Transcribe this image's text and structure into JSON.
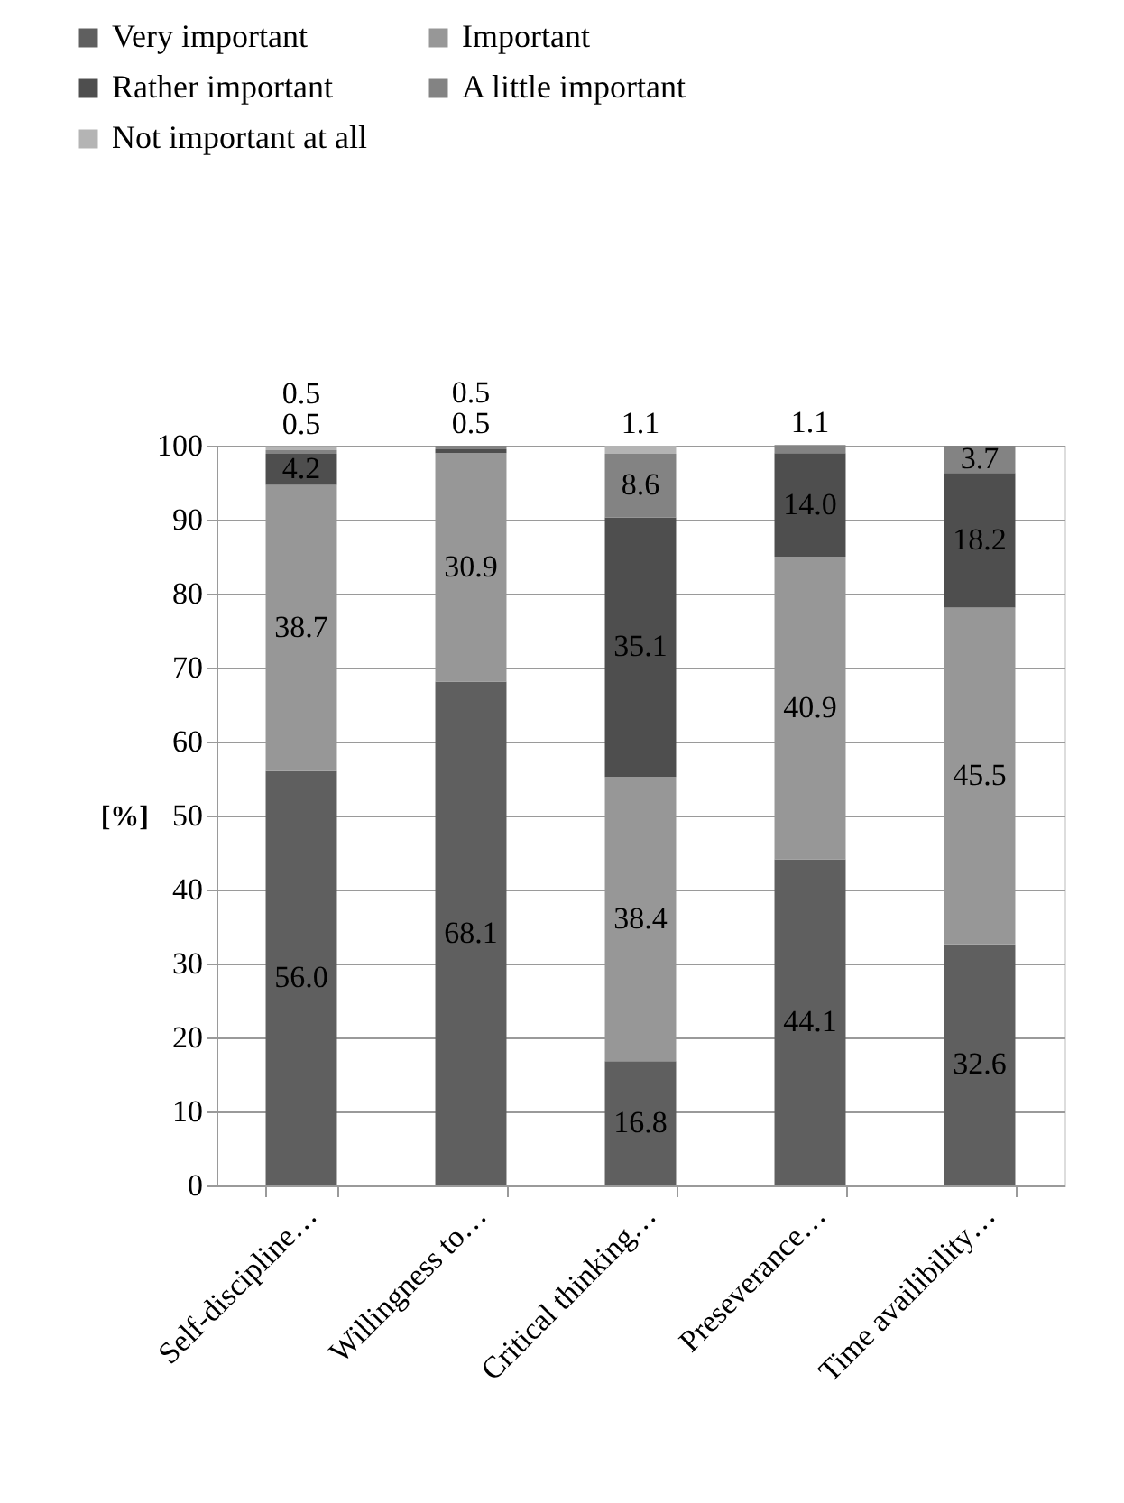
{
  "chart_data": {
    "type": "bar",
    "stacked": true,
    "ylabel": "[%]",
    "categories": [
      "Self-discipline…",
      "Willingness to…",
      "Critical thinking…",
      "Preseverance…",
      "Time availibility…"
    ],
    "series": [
      {
        "name": "Very important",
        "color": "#5f5f5f",
        "values": [
          56.0,
          68.1,
          16.8,
          44.1,
          32.6
        ],
        "value_labels": [
          "56.0",
          "68.1",
          "16.8",
          "44.1",
          "32.6"
        ]
      },
      {
        "name": "Important",
        "color": "#979797",
        "values": [
          38.7,
          30.9,
          38.4,
          40.9,
          45.5
        ],
        "value_labels": [
          "38.7",
          "30.9",
          "38.4",
          "40.9",
          "45.5"
        ]
      },
      {
        "name": "Rather important",
        "color": "#4e4e4e",
        "values": [
          4.2,
          0.5,
          35.1,
          14.0,
          18.2
        ],
        "value_labels": [
          "4.2",
          "0.5",
          "35.1",
          "14.0",
          "18.2"
        ]
      },
      {
        "name": "A little important",
        "color": "#838383",
        "values": [
          0.5,
          0.5,
          8.6,
          1.1,
          3.7
        ],
        "value_labels": [
          "0.5",
          "0.5",
          "8.6",
          "1.1",
          "3.7"
        ]
      },
      {
        "name": "Not important at all",
        "color": "#b4b4b4",
        "values": [
          0.5,
          null,
          1.1,
          null,
          null
        ],
        "value_labels": [
          "0.5",
          null,
          "1.1",
          null,
          null
        ]
      }
    ],
    "ylim": [
      0,
      100
    ],
    "yticks": [
      0,
      10,
      20,
      30,
      40,
      50,
      60,
      70,
      80,
      90,
      100
    ],
    "grid": "y",
    "legend": "top left"
  }
}
